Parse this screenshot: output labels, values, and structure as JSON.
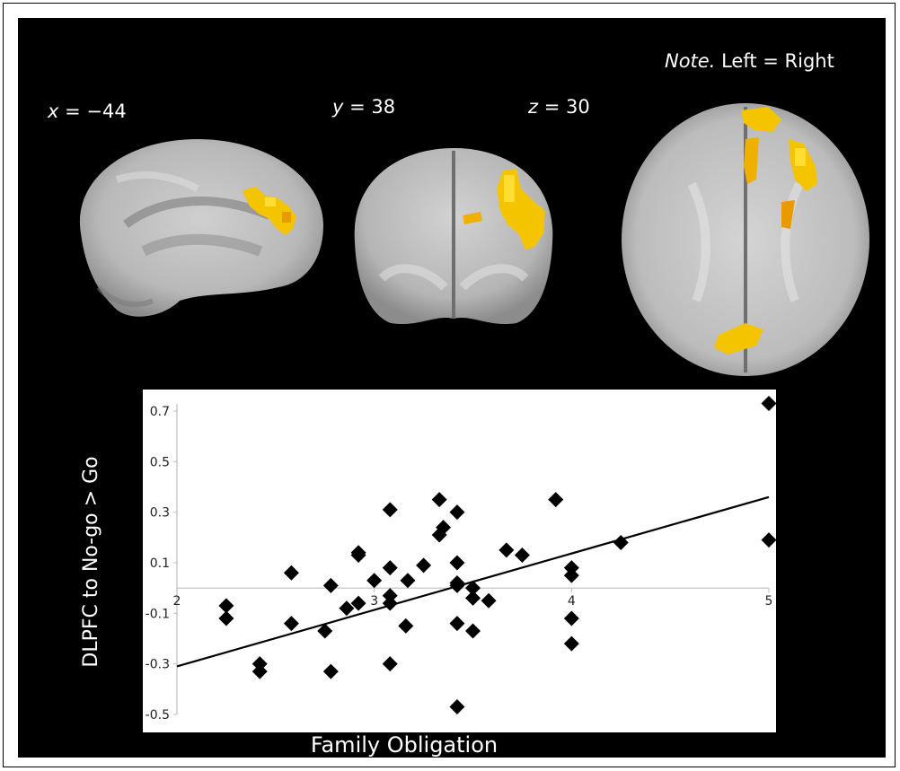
{
  "figure": {
    "note_italic": "Note.",
    "note_text": " Left = Right",
    "coords": [
      {
        "axis": "x",
        "value": " = −44"
      },
      {
        "axis": "y",
        "value": " = 38"
      },
      {
        "axis": "z",
        "value": " = 30"
      }
    ],
    "colors": {
      "background": "#000000",
      "activation": "#f5c400",
      "activation_edge": "#e89a00",
      "point": "#000000"
    }
  },
  "chart_data": {
    "type": "scatter",
    "xlabel": "Family Obligation",
    "ylabel": "DLPFC to No-go > Go",
    "xlim": [
      2,
      5
    ],
    "ylim": [
      -0.5,
      0.7
    ],
    "x_axis_at_y": 0,
    "x_ticks": [
      "2",
      "3",
      "4",
      "5"
    ],
    "y_ticks": [
      "0.7",
      "0.5",
      "0.3",
      "0.1",
      "-0.1",
      "-0.3",
      "-0.5"
    ],
    "trendline": {
      "x": [
        2,
        5
      ],
      "y": [
        -0.31,
        0.36
      ]
    },
    "points": [
      {
        "x": 2.25,
        "y": -0.07
      },
      {
        "x": 2.25,
        "y": -0.12
      },
      {
        "x": 2.42,
        "y": -0.3
      },
      {
        "x": 2.42,
        "y": -0.33
      },
      {
        "x": 2.58,
        "y": 0.06
      },
      {
        "x": 2.58,
        "y": -0.14
      },
      {
        "x": 2.75,
        "y": -0.17
      },
      {
        "x": 2.78,
        "y": 0.01
      },
      {
        "x": 2.78,
        "y": -0.33
      },
      {
        "x": 2.86,
        "y": -0.08
      },
      {
        "x": 2.92,
        "y": 0.14
      },
      {
        "x": 2.92,
        "y": 0.13
      },
      {
        "x": 2.92,
        "y": -0.06
      },
      {
        "x": 3.0,
        "y": 0.03
      },
      {
        "x": 3.08,
        "y": 0.31
      },
      {
        "x": 3.08,
        "y": 0.08
      },
      {
        "x": 3.08,
        "y": -0.03
      },
      {
        "x": 3.08,
        "y": -0.06
      },
      {
        "x": 3.08,
        "y": -0.3
      },
      {
        "x": 3.16,
        "y": -0.15
      },
      {
        "x": 3.17,
        "y": 0.03
      },
      {
        "x": 3.25,
        "y": 0.09
      },
      {
        "x": 3.33,
        "y": 0.35
      },
      {
        "x": 3.33,
        "y": 0.21
      },
      {
        "x": 3.35,
        "y": 0.24
      },
      {
        "x": 3.42,
        "y": 0.3
      },
      {
        "x": 3.42,
        "y": 0.1
      },
      {
        "x": 3.42,
        "y": 0.02
      },
      {
        "x": 3.42,
        "y": 0.01
      },
      {
        "x": 3.42,
        "y": -0.14
      },
      {
        "x": 3.42,
        "y": -0.47
      },
      {
        "x": 3.5,
        "y": 0.0
      },
      {
        "x": 3.5,
        "y": -0.04
      },
      {
        "x": 3.5,
        "y": -0.17
      },
      {
        "x": 3.58,
        "y": -0.05
      },
      {
        "x": 3.67,
        "y": 0.15
      },
      {
        "x": 3.75,
        "y": 0.13
      },
      {
        "x": 3.92,
        "y": 0.35
      },
      {
        "x": 4.0,
        "y": 0.08
      },
      {
        "x": 4.0,
        "y": 0.05
      },
      {
        "x": 4.0,
        "y": -0.12
      },
      {
        "x": 4.0,
        "y": -0.22
      },
      {
        "x": 4.25,
        "y": 0.18
      },
      {
        "x": 5.0,
        "y": 0.73
      },
      {
        "x": 5.0,
        "y": 0.19
      }
    ]
  }
}
